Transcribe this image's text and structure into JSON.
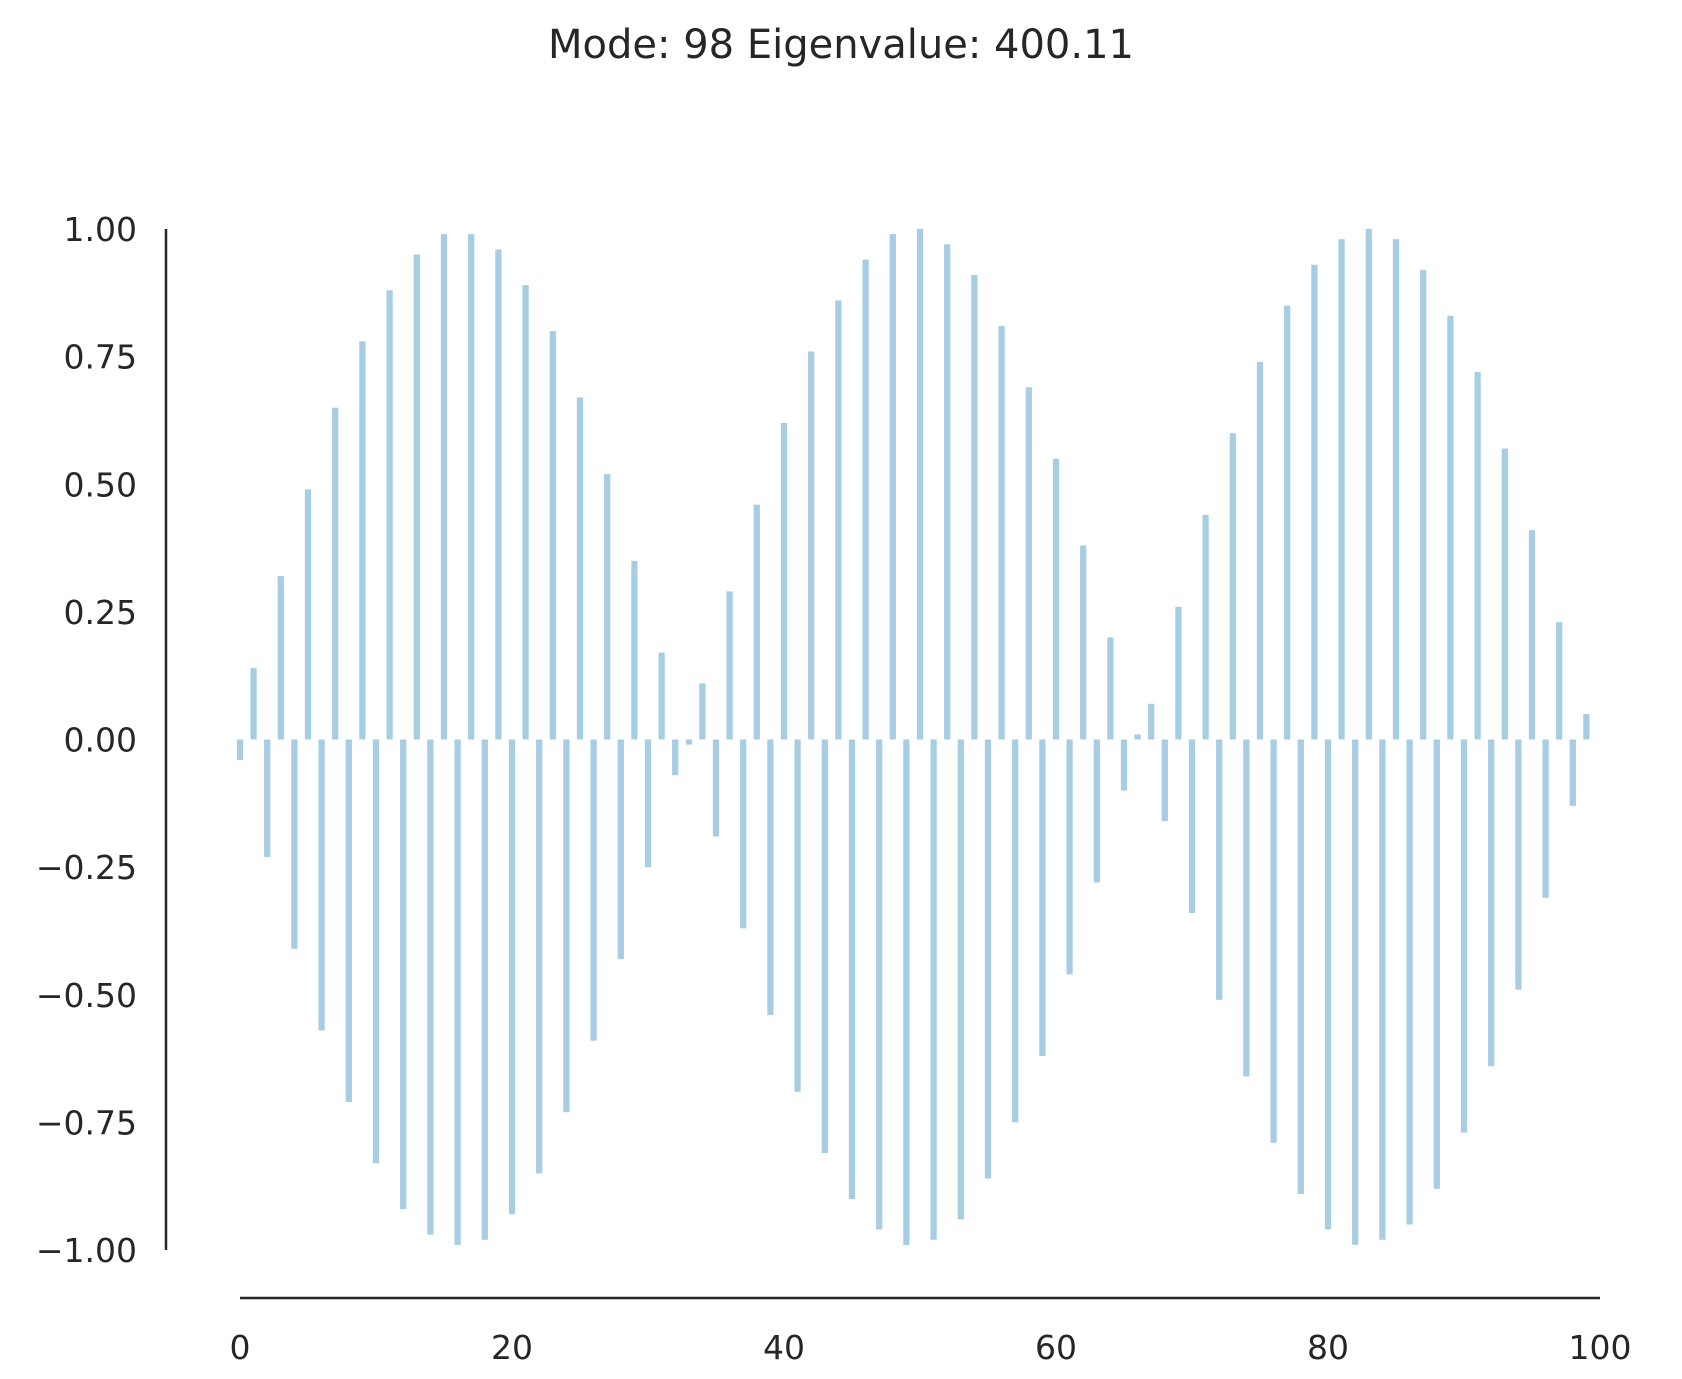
{
  "chart_data": {
    "type": "bar",
    "title": "Mode: 98  Eigenvalue: 400.11",
    "xlabel": "",
    "ylabel": "",
    "xlim": [
      0,
      100
    ],
    "ylim": [
      -1.0,
      1.0
    ],
    "grid": false,
    "legend": "none",
    "bar_color": "#a6cde2",
    "axis_color": "#262626",
    "x_ticks": [
      0,
      20,
      40,
      60,
      80,
      100
    ],
    "x_tick_labels": [
      "0",
      "20",
      "40",
      "60",
      "80",
      "100"
    ],
    "y_ticks": [
      1.0,
      0.75,
      0.5,
      0.25,
      0.0,
      -0.25,
      -0.5,
      -0.75,
      -1.0
    ],
    "y_tick_labels": [
      "1.00",
      "0.75",
      "0.50",
      "0.25",
      "0.00",
      "−0.25",
      "−0.50",
      "−0.75",
      "−1.00"
    ],
    "x": [
      0,
      1,
      2,
      3,
      4,
      5,
      6,
      7,
      8,
      9,
      10,
      11,
      12,
      13,
      14,
      15,
      16,
      17,
      18,
      19,
      20,
      21,
      22,
      23,
      24,
      25,
      26,
      27,
      28,
      29,
      30,
      31,
      32,
      33,
      34,
      35,
      36,
      37,
      38,
      39,
      40,
      41,
      42,
      43,
      44,
      45,
      46,
      47,
      48,
      49,
      50,
      51,
      52,
      53,
      54,
      55,
      56,
      57,
      58,
      59,
      60,
      61,
      62,
      63,
      64,
      65,
      66,
      67,
      68,
      69,
      70,
      71,
      72,
      73,
      74,
      75,
      76,
      77,
      78,
      79,
      80,
      81,
      82,
      83,
      84,
      85,
      86,
      87,
      88,
      89,
      90,
      91,
      92,
      93,
      94,
      95,
      96,
      97,
      98,
      99
    ],
    "values": [
      -0.04,
      0.14,
      -0.23,
      0.32,
      -0.41,
      0.49,
      -0.57,
      0.65,
      -0.71,
      0.78,
      -0.83,
      0.88,
      -0.92,
      0.95,
      -0.97,
      0.99,
      -0.99,
      0.99,
      -0.98,
      0.96,
      -0.93,
      0.89,
      -0.85,
      0.8,
      -0.73,
      0.67,
      -0.59,
      0.52,
      -0.43,
      0.35,
      -0.25,
      0.17,
      -0.07,
      -0.01,
      0.11,
      -0.19,
      0.29,
      -0.37,
      0.46,
      -0.54,
      0.62,
      -0.69,
      0.76,
      -0.81,
      0.86,
      -0.9,
      0.94,
      -0.96,
      0.99,
      -0.99,
      1.0,
      -0.98,
      0.97,
      -0.94,
      0.91,
      -0.86,
      0.81,
      -0.75,
      0.69,
      -0.62,
      0.55,
      -0.46,
      0.38,
      -0.28,
      0.2,
      -0.1,
      0.01,
      0.07,
      -0.16,
      0.26,
      -0.34,
      0.44,
      -0.51,
      0.6,
      -0.66,
      0.74,
      -0.79,
      0.85,
      -0.89,
      0.93,
      -0.96,
      0.98,
      -0.99,
      1.0,
      -0.98,
      0.98,
      -0.95,
      0.92,
      -0.88,
      0.83,
      -0.77,
      0.72,
      -0.64,
      0.57,
      -0.49,
      0.41,
      -0.31,
      0.23,
      -0.13,
      0.05
    ]
  }
}
